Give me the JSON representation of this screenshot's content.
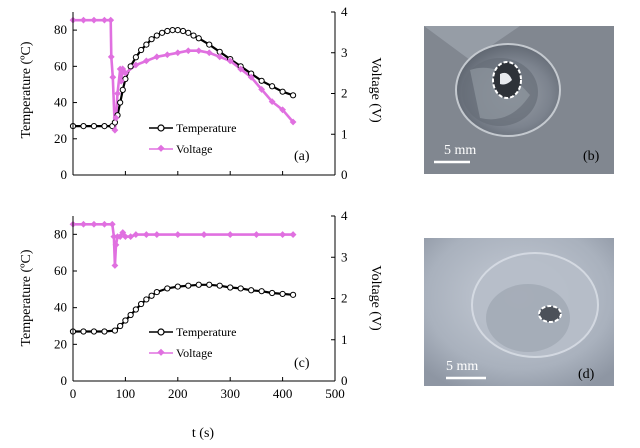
{
  "chart_data": [
    {
      "type": "line",
      "panel_label": "(a)",
      "xlim": [
        0,
        500
      ],
      "ylim_left": [
        0,
        90
      ],
      "ylim_right": [
        0,
        4
      ],
      "left_ticks": [
        0,
        20,
        40,
        60,
        80
      ],
      "right_ticks": [
        0,
        1,
        2,
        3,
        4
      ],
      "ylabel_left": "Temperature (ºC)",
      "ylabel_right": "Voltage (V)",
      "legend": [
        "Temperature",
        "Voltage"
      ],
      "legend_position": "center-right",
      "series": [
        {
          "name": "Temperature",
          "axis": "left",
          "color": "#000000",
          "x": [
            0,
            20,
            40,
            60,
            75,
            80,
            85,
            90,
            95,
            100,
            110,
            120,
            130,
            140,
            150,
            160,
            170,
            180,
            190,
            200,
            210,
            220,
            230,
            240,
            260,
            280,
            300,
            320,
            340,
            360,
            380,
            400,
            420
          ],
          "y": [
            27,
            27,
            27,
            27,
            27,
            29,
            33,
            40,
            47,
            53,
            60,
            65,
            69,
            72,
            75,
            77,
            78.5,
            79.5,
            80,
            80,
            79.5,
            78.5,
            77,
            75.5,
            72,
            68,
            64,
            60,
            56,
            52,
            49,
            46,
            44
          ]
        },
        {
          "name": "Voltage",
          "axis": "right",
          "color": "#e070e0",
          "x": [
            0,
            20,
            40,
            60,
            72,
            73,
            76,
            80,
            82,
            85,
            90,
            92,
            95,
            100,
            120,
            140,
            160,
            180,
            200,
            220,
            240,
            260,
            280,
            300,
            320,
            340,
            360,
            380,
            400,
            420
          ],
          "y": [
            3.8,
            3.8,
            3.8,
            3.8,
            3.8,
            2.9,
            2.4,
            1.1,
            1.4,
            2.0,
            2.6,
            2.3,
            2.6,
            2.5,
            2.7,
            2.8,
            2.9,
            2.95,
            3.0,
            3.05,
            3.05,
            3.0,
            2.9,
            2.8,
            2.6,
            2.4,
            2.1,
            1.8,
            1.6,
            1.3
          ]
        }
      ]
    },
    {
      "type": "line",
      "panel_label": "(c)",
      "xlim": [
        0,
        500
      ],
      "ylim_left": [
        0,
        90
      ],
      "ylim_right": [
        0,
        4
      ],
      "left_ticks": [
        0,
        20,
        40,
        60,
        80
      ],
      "right_ticks": [
        0,
        1,
        2,
        3,
        4
      ],
      "x_ticks": [
        0,
        100,
        200,
        300,
        400,
        500
      ],
      "xlabel": "t (s)",
      "ylabel_left": "Temperature (ºC)",
      "ylabel_right": "Voltage (V)",
      "legend": [
        "Temperature",
        "Voltage"
      ],
      "legend_position": "center-right",
      "series": [
        {
          "name": "Temperature",
          "axis": "left",
          "color": "#000000",
          "x": [
            0,
            20,
            40,
            60,
            80,
            90,
            100,
            110,
            120,
            130,
            140,
            150,
            160,
            180,
            200,
            220,
            240,
            260,
            280,
            300,
            320,
            340,
            360,
            380,
            400,
            420
          ],
          "y": [
            27,
            27,
            27,
            27,
            27.5,
            30,
            33,
            36,
            39,
            42,
            44.5,
            46.5,
            48.5,
            50.5,
            51.5,
            52,
            52.5,
            52.5,
            52,
            51,
            50.5,
            49.5,
            49,
            48,
            47.5,
            47
          ]
        },
        {
          "name": "Voltage",
          "axis": "right",
          "color": "#e070e0",
          "x": [
            0,
            20,
            40,
            60,
            75,
            78,
            80,
            82,
            85,
            90,
            95,
            100,
            110,
            120,
            140,
            160,
            200,
            250,
            300,
            350,
            400,
            420
          ],
          "y": [
            3.8,
            3.8,
            3.8,
            3.8,
            3.8,
            3.5,
            2.8,
            3.3,
            3.5,
            3.5,
            3.6,
            3.5,
            3.5,
            3.55,
            3.55,
            3.55,
            3.55,
            3.55,
            3.55,
            3.55,
            3.55,
            3.55
          ]
        }
      ]
    }
  ],
  "photos": [
    {
      "label": "(b)",
      "scale_text": "5 mm"
    },
    {
      "label": "(d)",
      "scale_text": "5 mm"
    }
  ]
}
